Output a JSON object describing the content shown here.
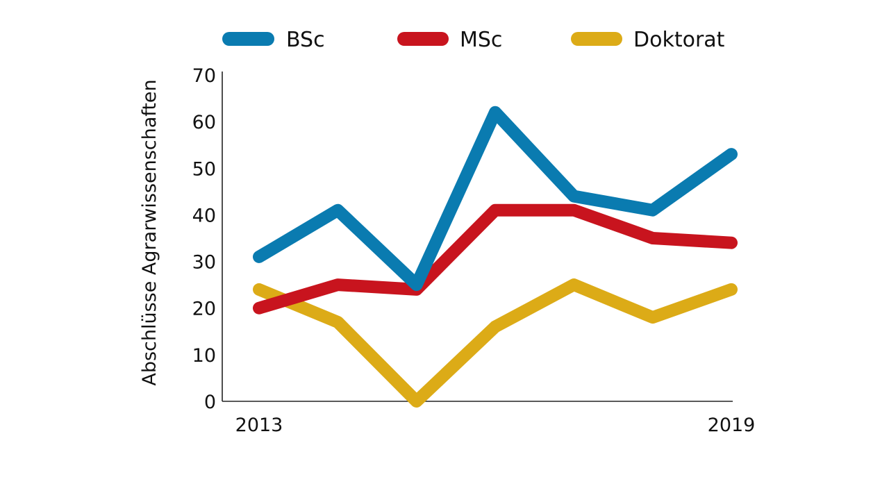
{
  "chart_data": {
    "type": "line",
    "title": "",
    "xlabel": "",
    "ylabel": "Abschlüsse Agrarwissenschaften",
    "x": [
      2013,
      2014,
      2015,
      2016,
      2017,
      2018,
      2019
    ],
    "x_tick_labels": [
      "2013",
      "2019"
    ],
    "y_ticks": [
      0,
      10,
      20,
      30,
      40,
      50,
      60,
      70
    ],
    "ylim": [
      0,
      70
    ],
    "grid": false,
    "legend_position": "top",
    "series": [
      {
        "name": "BSc",
        "color": "#0a7bb0",
        "values": [
          31,
          41,
          25,
          62,
          44,
          41,
          53
        ]
      },
      {
        "name": "MSc",
        "color": "#c8141e",
        "values": [
          20,
          25,
          24,
          41,
          41,
          35,
          34
        ]
      },
      {
        "name": "Doktorat",
        "color": "#dcab17",
        "values": [
          24,
          17,
          0,
          16,
          25,
          18,
          24
        ]
      }
    ]
  }
}
